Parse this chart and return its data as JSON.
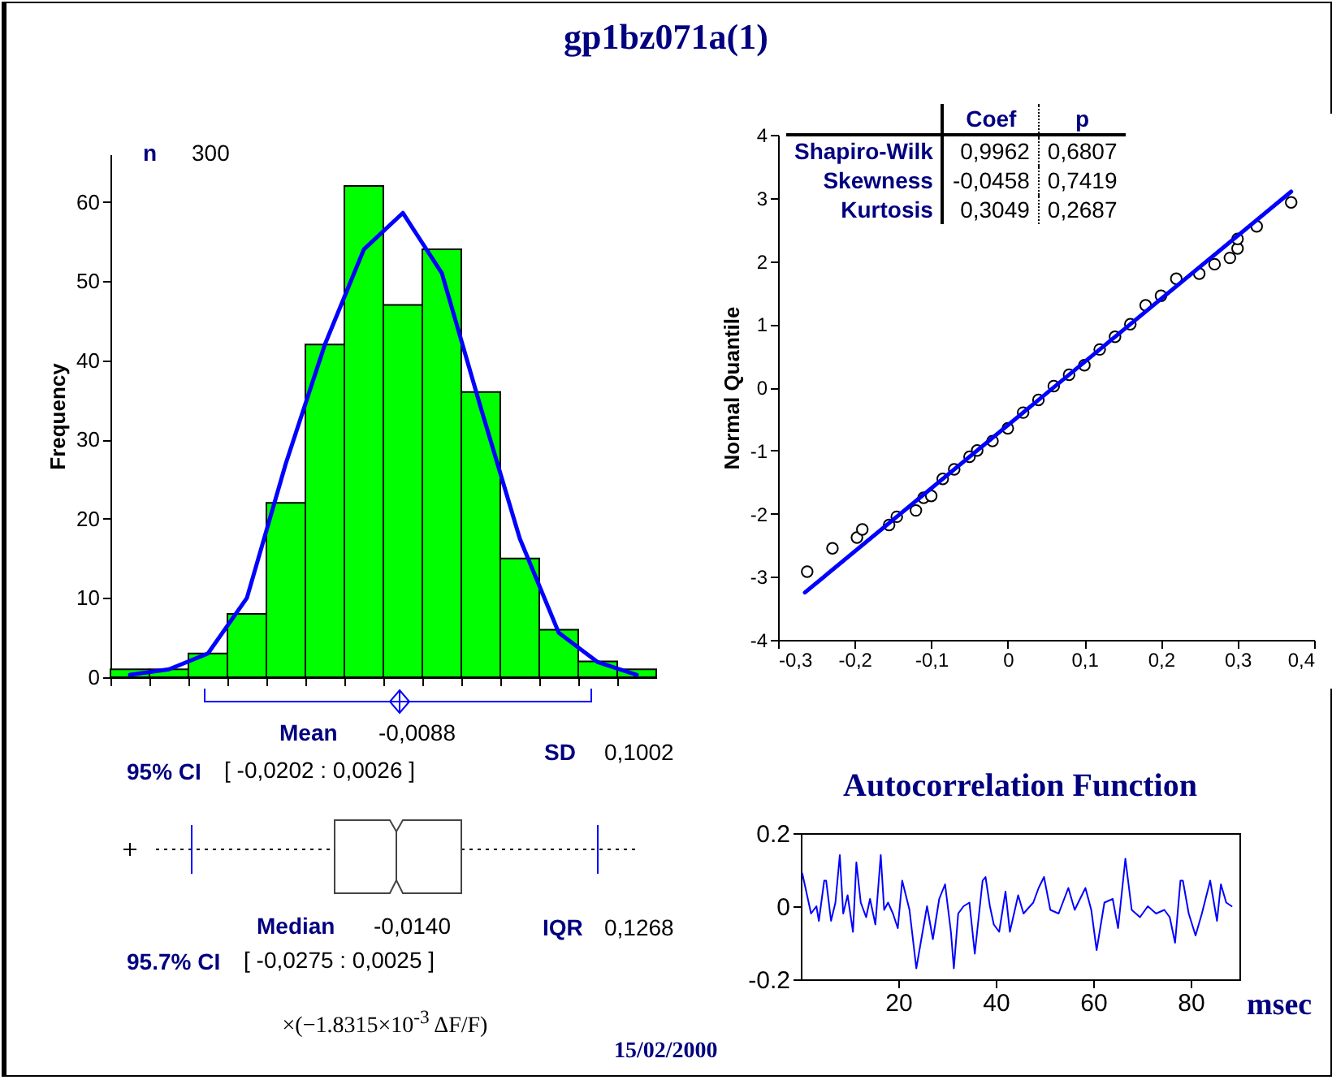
{
  "chart_data": [
    {
      "type": "bar",
      "title": "gp1bz071a(1)",
      "ylabel": "Frequency",
      "xlabel": "×(−1.8315×10$^{-3}$ ΔF/F)",
      "categories": [
        null,
        null,
        null,
        null,
        null,
        null,
        null,
        null,
        null,
        null,
        null,
        null,
        null,
        null
      ],
      "series": [
        {
          "color": "#00ff00",
          "values": [
            1,
            1,
            3,
            8,
            22,
            42,
            62,
            47,
            54,
            36,
            15,
            6,
            2,
            1
          ]
        },
        {
          "type": "line",
          "color": "#0000ff",
          "values": [
            0.3,
            1,
            3,
            10,
            27,
            42,
            54,
            58.6,
            51,
            34,
            17.5,
            5.6,
            1.9,
            0.3
          ]
        }
      ],
      "ylim": [
        0,
        66
      ],
      "yticks": [
        0,
        10,
        20,
        30,
        40,
        50,
        60
      ],
      "tick_labels": "y",
      "annotations": [
        "n",
        "300",
        "Mean",
        "-0,0088",
        "95% CI",
        "[ -0,0202 : 0,0026 ]",
        "SD",
        "0,1002",
        "Median",
        "-0,0140",
        "95.7% CI",
        "[ -0,0275 : 0,0025 ]",
        "IQR",
        "0,1268",
        "15/02/2000"
      ]
    },
    {
      "type": "scatter",
      "ylabel": "Normal Quantile",
      "series": [
        {
          "color": "#000000",
          "marker": "circle",
          "x": [
            -0.262,
            -0.229,
            -0.197,
            -0.19,
            -0.155,
            -0.145,
            -0.12,
            -0.11,
            -0.1,
            -0.085,
            -0.07,
            -0.05,
            -0.04,
            -0.02,
            0,
            0.02,
            0.04,
            0.06,
            0.08,
            0.1,
            0.12,
            0.14,
            0.16,
            0.18,
            0.2,
            0.22,
            0.25,
            0.27,
            0.29,
            0.3,
            0.3,
            0.325,
            0.37
          ],
          "values": [
            -2.92,
            -2.55,
            -2.38,
            -2.25,
            -2.18,
            -2.05,
            -1.95,
            -1.75,
            -1.72,
            -1.45,
            -1.3,
            -1.1,
            -1,
            -0.85,
            -0.65,
            -0.4,
            -0.2,
            0.02,
            0.2,
            0.35,
            0.6,
            0.8,
            1,
            1.3,
            1.45,
            1.72,
            1.8,
            1.95,
            2.05,
            2.2,
            2.35,
            2.55,
            2.93
          ]
        },
        {
          "type": "line",
          "marker": "none",
          "color": "#0000ff",
          "x": [
            -0.265,
            0.37
          ],
          "values": [
            -3.25,
            3.1
          ]
        }
      ],
      "xlim": [
        -0.3,
        0.4
      ],
      "xticks": [
        {
          "value": -0.3,
          "label": "-0,3"
        },
        {
          "value": -0.2,
          "label": "-0,2"
        },
        {
          "value": -0.1,
          "label": "-0,1"
        },
        0,
        {
          "value": 0.1,
          "label": "0,1"
        },
        {
          "value": 0.2,
          "label": "0,2"
        },
        {
          "value": 0.3,
          "label": "0,3"
        },
        {
          "value": 0.4,
          "label": "0,4"
        }
      ],
      "ylim": [
        -4,
        4
      ],
      "yticks": [
        -4,
        -3,
        -2,
        -1,
        0,
        1,
        2,
        3,
        4
      ],
      "annotations": [
        "Coef",
        "p",
        "Shapiro-Wilk",
        "0,9962",
        "0,6807",
        "Skewness",
        "-0,0458",
        "0,7419",
        "Kurtosis",
        "0,3049",
        "0,2687"
      ]
    },
    {
      "type": "line",
      "title": "Autocorrelation Function",
      "xlabel": "msec",
      "x": [
        0.3,
        2.1,
        3.2,
        3.7,
        4.8,
        5.2,
        6.2,
        7.1,
        8,
        8.7,
        9.6,
        10.7,
        11.4,
        12.3,
        13.4,
        14.2,
        15.3,
        16.4,
        17.1,
        17.9,
        18.9,
        19.9,
        20.8,
        22.3,
        23.7,
        24.6,
        25.9,
        27.1,
        28.4,
        29.6,
        30.8,
        31.4,
        32.3,
        33.4,
        34.6,
        35.7,
        37.3,
        37.9,
        38.8,
        39.6,
        40.7,
        42,
        42.9,
        44.6,
        45.7,
        47.7,
        48.8,
        49.9,
        51.2,
        52.9,
        54.9,
        56.2,
        58.4,
        59.6,
        60.7,
        62.3,
        64,
        65.1,
        66.6,
        67.9,
        69.6,
        71.2,
        72.9,
        74.6,
        75.7,
        76.8,
        77.9,
        78.4,
        79.6,
        81,
        82.3,
        84,
        85.4,
        86.2,
        87.3,
        88.4
      ],
      "series": [
        {
          "color": "#0000ff",
          "values": [
            0.09,
            -0.02,
            0,
            -0.04,
            0.07,
            0.07,
            -0.04,
            0.01,
            0.14,
            -0.02,
            0.03,
            -0.07,
            0.12,
            0.01,
            -0.03,
            0.02,
            -0.05,
            0.14,
            -0.01,
            0.01,
            -0.02,
            -0.06,
            0.07,
            -0.01,
            -0.17,
            -0.1,
            0,
            -0.09,
            0.02,
            0.06,
            -0.07,
            -0.17,
            -0.02,
            0,
            0.01,
            -0.13,
            0.07,
            0.08,
            0,
            -0.05,
            -0.07,
            0.04,
            -0.07,
            0.03,
            -0.02,
            0.01,
            0.05,
            0.08,
            -0.01,
            -0.02,
            0.05,
            -0.01,
            0.05,
            -0.01,
            -0.12,
            0.01,
            0.02,
            -0.06,
            0.13,
            -0.01,
            -0.03,
            0,
            -0.02,
            -0.01,
            -0.03,
            -0.1,
            0.07,
            0.07,
            -0.02,
            -0.08,
            -0.02,
            0.07,
            -0.04,
            0.06,
            0.01,
            0
          ]
        }
      ],
      "xlim": [
        0,
        90
      ],
      "xticks": [
        20,
        40,
        60,
        80
      ],
      "ylim": [
        -0.2,
        0.2
      ],
      "yticks": [
        {
          "value": -0.2,
          "label": "-0.2"
        },
        0,
        {
          "value": 0.2,
          "label": "0.2"
        }
      ]
    }
  ]
}
